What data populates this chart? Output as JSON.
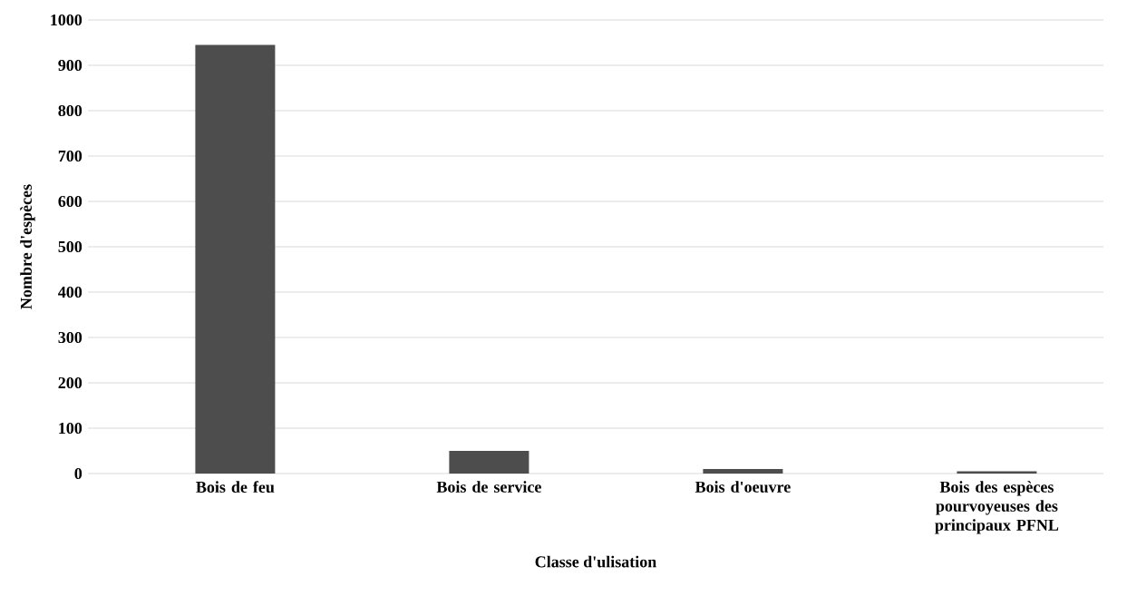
{
  "chart_data": {
    "type": "bar",
    "categories": [
      "Bois de feu",
      "Bois de service",
      "Bois d'oeuvre",
      "Bois des espèces pourvoyeuses des principaux PFNL"
    ],
    "values": [
      945,
      50,
      10,
      5
    ],
    "color": "#4d4d4d",
    "xlabel": "Classe d'ulisation",
    "ylabel": "Nombre d'espèces",
    "ylim": [
      0,
      1000
    ],
    "yticks": [
      0,
      100,
      200,
      300,
      400,
      500,
      600,
      700,
      800,
      900,
      1000
    ],
    "grid": "y"
  }
}
